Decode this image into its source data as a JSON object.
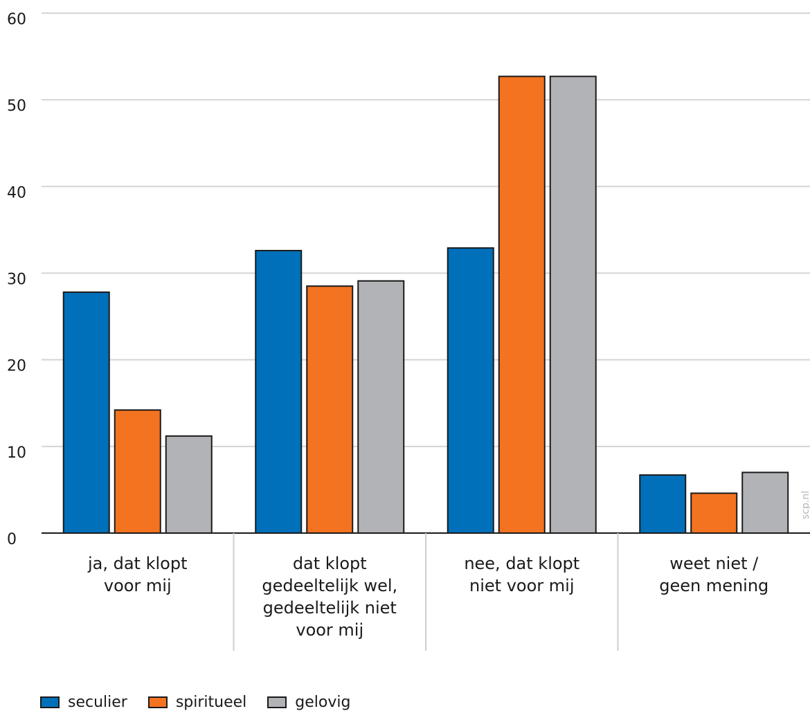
{
  "chart_data": {
    "type": "bar",
    "categories": [
      [
        "ja, dat klopt",
        "voor mij"
      ],
      [
        "dat klopt",
        "gedeeltelijk wel,",
        "gedeeltelijk niet",
        "voor mij"
      ],
      [
        "nee, dat klopt",
        "niet voor mij"
      ],
      [
        "weet niet /",
        "geen mening"
      ]
    ],
    "series": [
      {
        "name": "seculier",
        "color": "#0070BA",
        "values": [
          27.8,
          32.6,
          32.9,
          6.7
        ]
      },
      {
        "name": "spiritueel",
        "color": "#F37321",
        "values": [
          14.2,
          28.5,
          52.7,
          4.6
        ]
      },
      {
        "name": "gelovig",
        "color": "#B2B3B6",
        "values": [
          11.2,
          29.1,
          52.7,
          7.0
        ]
      }
    ],
    "ylim": [
      0,
      60
    ],
    "yticks": [
      "0",
      "10",
      "20",
      "30",
      "40",
      "50",
      "60"
    ],
    "grid": true,
    "legend_position": "bottom-left",
    "title": "",
    "xlabel": "",
    "ylabel": ""
  },
  "watermark": "scp.nl"
}
